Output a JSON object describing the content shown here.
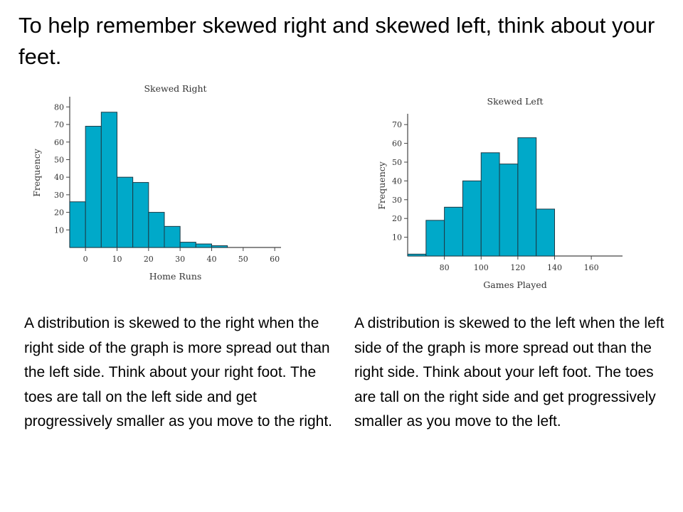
{
  "slide": {
    "title": "To help remember skewed right and skewed left, think about your feet."
  },
  "colors": {
    "bar_fill": "#00A9C9",
    "bar_stroke": "#1d3a46",
    "axis": "#444444"
  },
  "captions": {
    "right": "A distribution is skewed to the right when the right side of the graph is more spread out than the left side. Think about your right foot. The toes are tall on the left side and get progressively smaller as you move to the right.",
    "left": "A distribution is skewed to the left when the left side of the graph is more spread out than the right side. Think about your left foot. The toes are tall on the right side and get progressively smaller as you move to the left."
  },
  "chart_data": [
    {
      "id": "right",
      "type": "bar",
      "title": "Skewed Right",
      "xlabel": "Home Runs",
      "ylabel": "Frequency",
      "bin_edges": [
        -5,
        0,
        5,
        10,
        15,
        20,
        25,
        30,
        35,
        40,
        45,
        50,
        55,
        60
      ],
      "values": [
        26,
        69,
        77,
        40,
        37,
        20,
        12,
        3,
        2,
        1,
        0,
        0,
        0
      ],
      "xlim": [
        -5,
        62
      ],
      "ylim": [
        0,
        85
      ],
      "xticks": [
        0,
        10,
        20,
        30,
        40,
        50,
        60
      ],
      "yticks": [
        10,
        20,
        30,
        40,
        50,
        60,
        70,
        80
      ],
      "grid": false
    },
    {
      "id": "left",
      "type": "bar",
      "title": "Skewed Left",
      "xlabel": "Games Played",
      "ylabel": "Frequency",
      "bin_edges": [
        60,
        70,
        80,
        90,
        100,
        110,
        120,
        130,
        140,
        150,
        160,
        170
      ],
      "values": [
        1,
        19,
        26,
        40,
        55,
        49,
        63,
        25,
        0,
        0,
        0
      ],
      "xlim": [
        60,
        177
      ],
      "ylim": [
        0,
        75
      ],
      "xticks": [
        80,
        100,
        120,
        140,
        160
      ],
      "yticks": [
        10,
        20,
        30,
        40,
        50,
        60,
        70
      ],
      "grid": false
    }
  ]
}
